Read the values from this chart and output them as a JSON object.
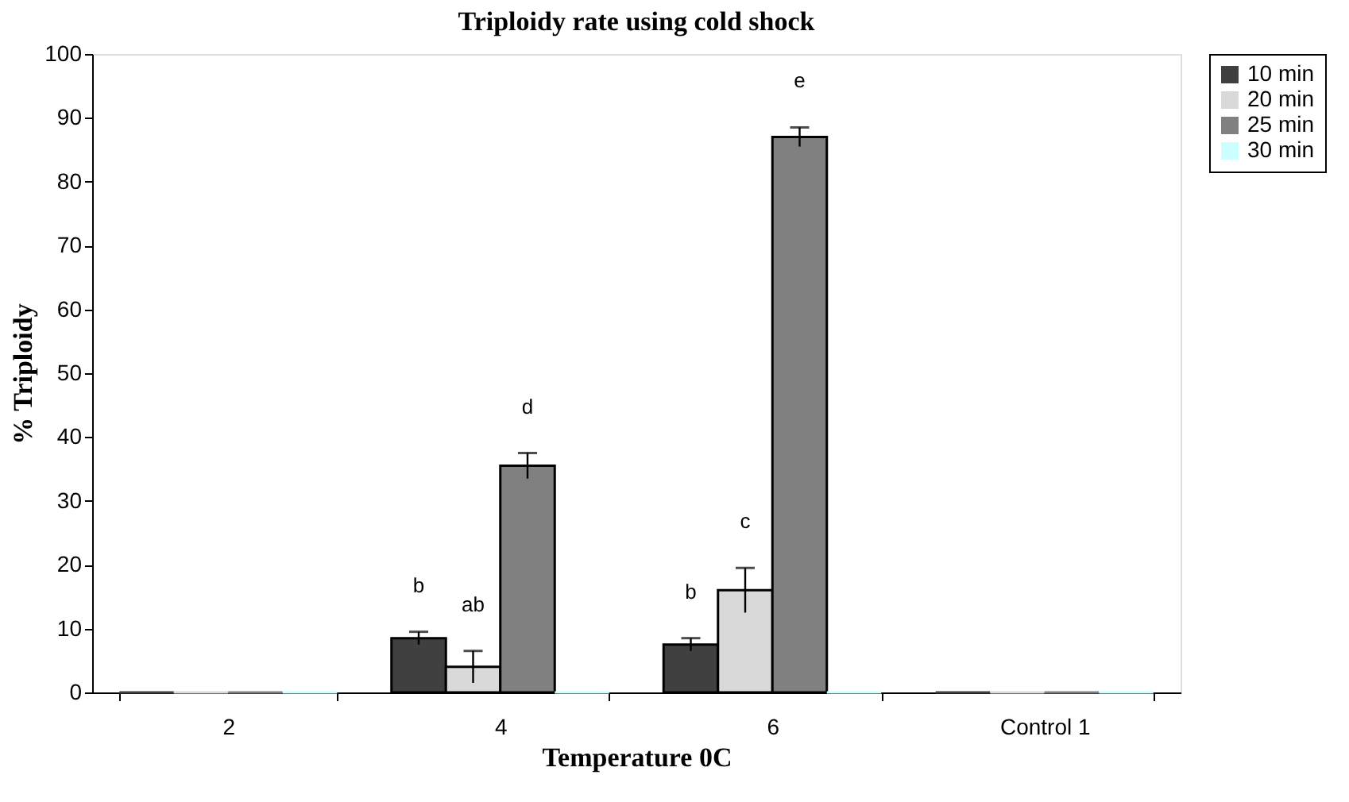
{
  "chart_data": {
    "type": "bar",
    "title": "Triploidy rate using cold shock",
    "xlabel": "Temperature 0C",
    "ylabel": "% Triploidy",
    "categories": [
      "2",
      "4",
      "6",
      "Control 1"
    ],
    "series": [
      {
        "name": "10 min",
        "color": "#404040",
        "values": [
          0,
          8.5,
          7.5,
          0
        ],
        "errors": [
          null,
          1,
          1,
          null
        ]
      },
      {
        "name": "20 min",
        "color": "#d9d9d9",
        "values": [
          0,
          4,
          16,
          0
        ],
        "errors": [
          null,
          2.5,
          3.5,
          null
        ]
      },
      {
        "name": "25 min",
        "color": "#808080",
        "values": [
          0,
          35.5,
          87,
          0
        ],
        "errors": [
          null,
          2,
          1.5,
          null
        ]
      },
      {
        "name": "30 min",
        "color": "#ccffff",
        "values": [
          0,
          0,
          0,
          0
        ],
        "errors": [
          null,
          null,
          null,
          null
        ]
      }
    ],
    "annotations": [
      "b",
      "ab",
      "d",
      "b",
      "c",
      "e"
    ],
    "ylim": [
      0,
      100
    ],
    "yticks": [
      0,
      10,
      20,
      30,
      40,
      50,
      60,
      70,
      80,
      90,
      100
    ],
    "grid": false,
    "legend": "right"
  }
}
